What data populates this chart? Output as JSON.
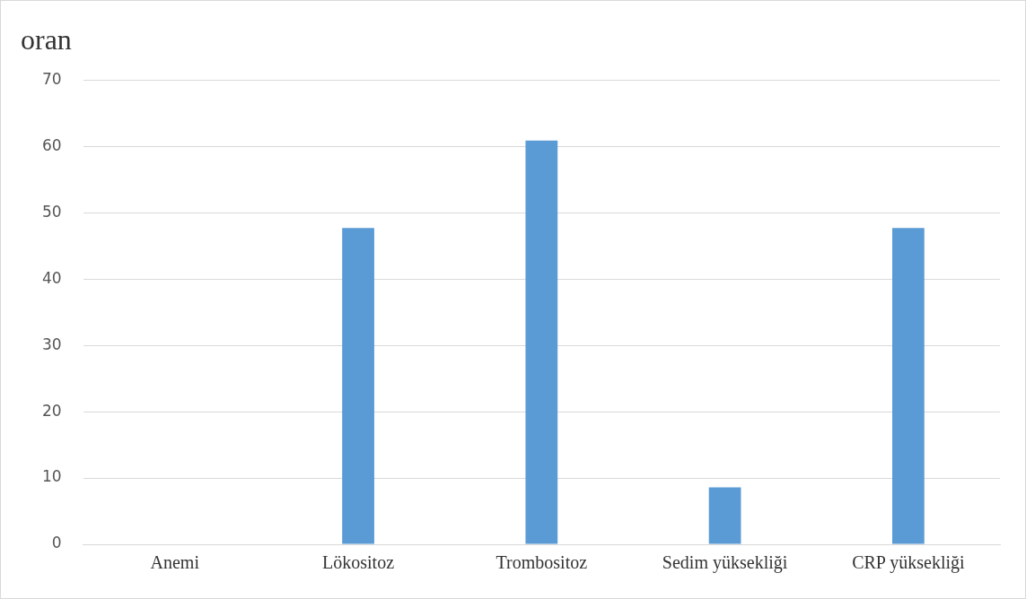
{
  "chart_data": {
    "type": "bar",
    "title": "oran",
    "categories": [
      "Anemi",
      "Lökositoz",
      "Trombositoz",
      "Sedim yüksekliği",
      "CRP yüksekliği"
    ],
    "values": [
      0,
      47.7,
      60.9,
      8.6,
      47.7
    ],
    "color": "#5b9bd5",
    "ylim": [
      0,
      70
    ],
    "yticks": [
      0,
      10,
      20,
      30,
      40,
      50,
      60,
      70
    ],
    "grid": "y",
    "legend": false
  }
}
